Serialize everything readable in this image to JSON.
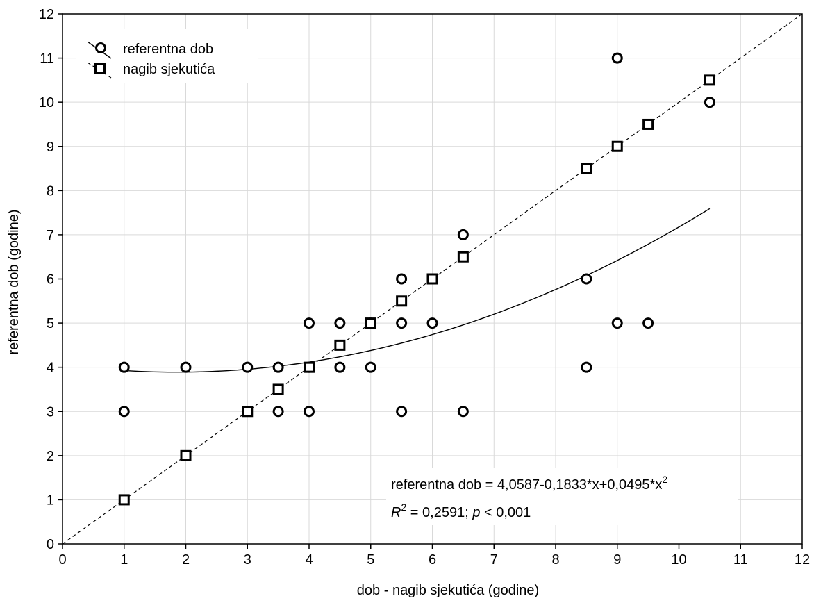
{
  "chart_data": {
    "type": "scatter",
    "title": "",
    "xlabel": "dob - nagib sjekutića (godine)",
    "ylabel": "referentna dob (godine)",
    "xlim": [
      0,
      12
    ],
    "ylim": [
      0,
      12
    ],
    "x_ticks": [
      "0",
      "1",
      "2",
      "3",
      "4",
      "5",
      "6",
      "7",
      "8",
      "9",
      "10",
      "11",
      "12"
    ],
    "y_ticks": [
      "0",
      "1",
      "2",
      "3",
      "4",
      "5",
      "6",
      "7",
      "8",
      "9",
      "10",
      "11",
      "12"
    ],
    "grid": true,
    "legend_position": "top-left",
    "series": [
      {
        "name": "referentna dob",
        "marker": "circle",
        "line": "solid",
        "fit": {
          "type": "quadratic",
          "a": 4.0587,
          "b": -0.1833,
          "c": 0.0495,
          "x_range": [
            1,
            10.5
          ]
        },
        "points": [
          [
            1,
            4
          ],
          [
            1,
            3
          ],
          [
            2,
            4
          ],
          [
            3,
            4
          ],
          [
            3.5,
            4
          ],
          [
            3.5,
            3
          ],
          [
            4,
            5
          ],
          [
            4,
            4
          ],
          [
            4,
            3
          ],
          [
            4.5,
            5
          ],
          [
            4.5,
            4
          ],
          [
            5,
            5
          ],
          [
            5,
            4
          ],
          [
            5.5,
            6
          ],
          [
            5.5,
            5
          ],
          [
            5.5,
            3
          ],
          [
            6,
            5
          ],
          [
            6.5,
            7
          ],
          [
            6.5,
            3
          ],
          [
            8.5,
            6
          ],
          [
            8.5,
            4
          ],
          [
            9,
            11
          ],
          [
            9,
            5
          ],
          [
            9.5,
            5
          ],
          [
            10.5,
            10
          ]
        ]
      },
      {
        "name": "nagib sjekutića",
        "marker": "square",
        "line": "dashed",
        "fit": {
          "type": "identity",
          "x_range": [
            0,
            12
          ]
        },
        "points": [
          [
            1,
            1
          ],
          [
            2,
            2
          ],
          [
            3,
            3
          ],
          [
            3.5,
            3.5
          ],
          [
            4,
            4
          ],
          [
            4.5,
            4.5
          ],
          [
            5,
            5
          ],
          [
            5.5,
            5.5
          ],
          [
            6,
            6
          ],
          [
            6.5,
            6.5
          ],
          [
            8.5,
            8.5
          ],
          [
            9,
            9
          ],
          [
            9.5,
            9.5
          ],
          [
            10.5,
            10.5
          ]
        ]
      }
    ],
    "annotation": {
      "equation_prefix": "referentna dob = 4,0587-0,1833*x+0,0495*x",
      "equation_sup": "2",
      "r_label": "R",
      "r_sup": "2",
      "r_value": " = 0,2591; ",
      "p_label": "p",
      "p_value": " < 0,001"
    }
  }
}
